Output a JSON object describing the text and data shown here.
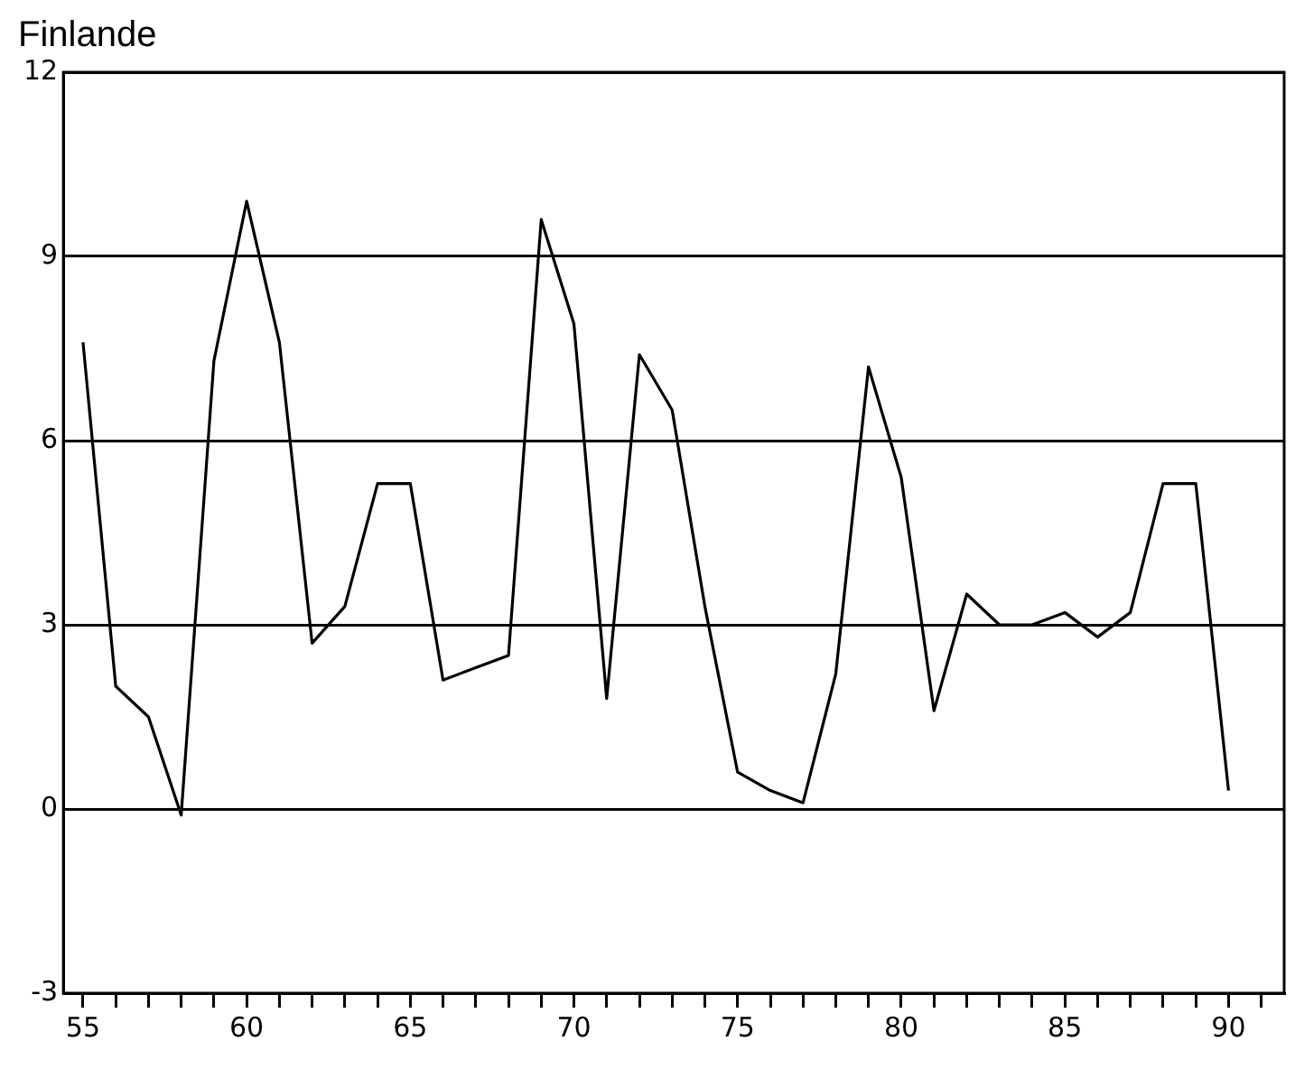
{
  "chart_data": {
    "type": "line",
    "title": "Finlande",
    "x": [
      55,
      56,
      57,
      58,
      59,
      60,
      61,
      62,
      63,
      64,
      65,
      66,
      67,
      68,
      69,
      70,
      71,
      72,
      73,
      74,
      75,
      76,
      77,
      78,
      79,
      80,
      81,
      82,
      83,
      84,
      85,
      86,
      87,
      88,
      89,
      90
    ],
    "series": [
      {
        "color": "#000000",
        "values": [
          7.6,
          2.0,
          1.5,
          -0.1,
          7.3,
          9.9,
          7.6,
          2.7,
          3.3,
          5.3,
          5.3,
          2.1,
          2.3,
          2.5,
          9.6,
          7.9,
          1.8,
          7.4,
          6.5,
          3.3,
          0.6,
          0.3,
          0.1,
          2.2,
          7.2,
          5.4,
          1.6,
          3.5,
          3.0,
          3.0,
          3.2,
          2.8,
          3.2,
          5.3,
          5.3,
          0.3
        ]
      }
    ],
    "xlim": [
      54.4,
      91.7
    ],
    "xticks": [
      55,
      {
        "value": 56,
        "label": null
      },
      {
        "value": 57,
        "label": null
      },
      {
        "value": 58,
        "label": null
      },
      {
        "value": 59,
        "label": null
      },
      60,
      {
        "value": 61,
        "label": null
      },
      {
        "value": 62,
        "label": null
      },
      {
        "value": 63,
        "label": null
      },
      {
        "value": 64,
        "label": null
      },
      65,
      {
        "value": 66,
        "label": null
      },
      {
        "value": 67,
        "label": null
      },
      {
        "value": 68,
        "label": null
      },
      {
        "value": 69,
        "label": null
      },
      70,
      {
        "value": 71,
        "label": null
      },
      {
        "value": 72,
        "label": null
      },
      {
        "value": 73,
        "label": null
      },
      {
        "value": 74,
        "label": null
      },
      75,
      {
        "value": 76,
        "label": null
      },
      {
        "value": 77,
        "label": null
      },
      {
        "value": 78,
        "label": null
      },
      {
        "value": 79,
        "label": null
      },
      80,
      {
        "value": 81,
        "label": null
      },
      {
        "value": 82,
        "label": null
      },
      {
        "value": 83,
        "label": null
      },
      {
        "value": 84,
        "label": null
      },
      85,
      {
        "value": 86,
        "label": null
      },
      {
        "value": 87,
        "label": null
      },
      {
        "value": 88,
        "label": null
      },
      {
        "value": 89,
        "label": null
      },
      90,
      {
        "value": 91,
        "label": null
      }
    ],
    "ylim": [
      -3,
      12
    ],
    "yticks": [
      -3,
      0,
      3,
      6,
      9,
      12
    ],
    "grid": "y",
    "legend": false,
    "marker": "none",
    "line_style": "solid"
  }
}
